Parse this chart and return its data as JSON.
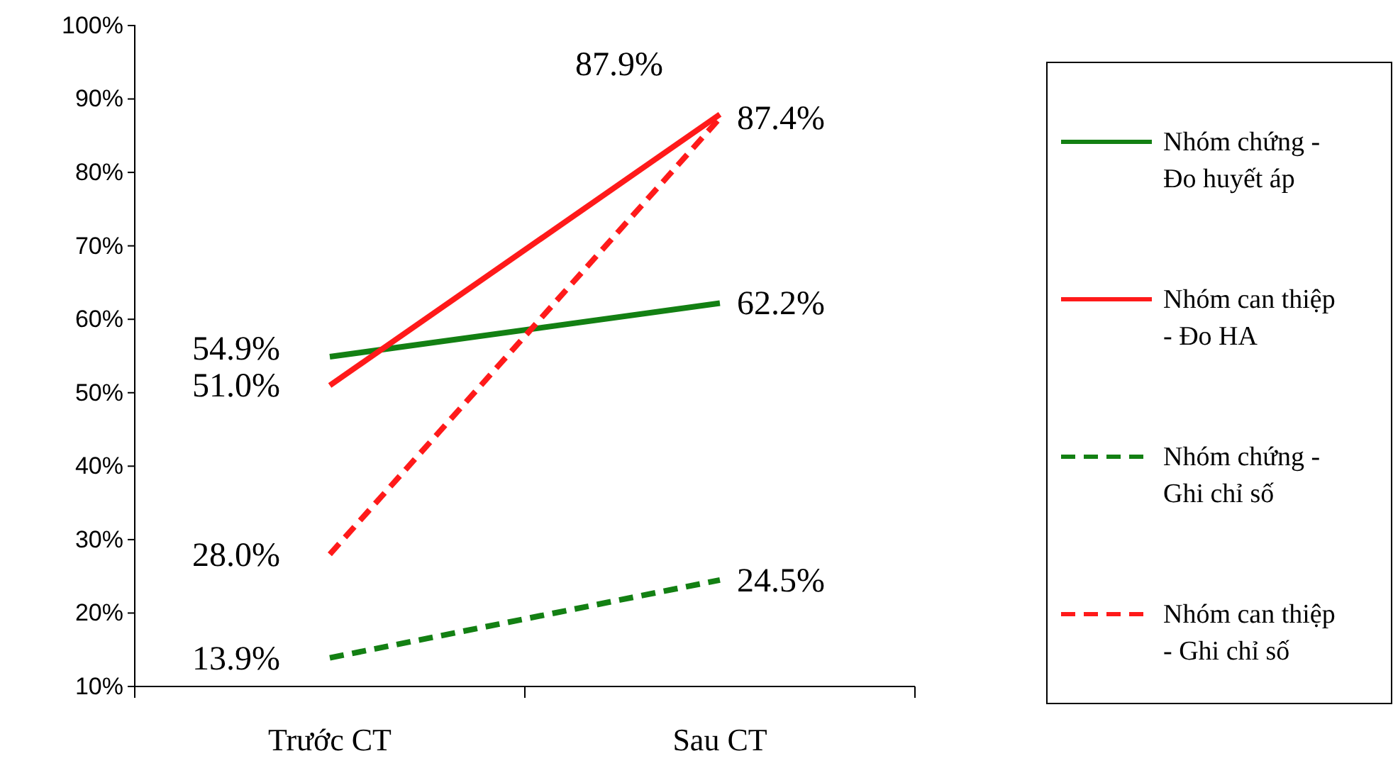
{
  "chart_data": {
    "type": "line",
    "categories": [
      "Trước CT",
      "Sau CT"
    ],
    "ylim": [
      10,
      100
    ],
    "yticks": [
      {
        "value": 10,
        "label": "10%"
      },
      {
        "value": 20,
        "label": "20%"
      },
      {
        "value": 30,
        "label": "30%"
      },
      {
        "value": 40,
        "label": "40%"
      },
      {
        "value": 50,
        "label": "50%"
      },
      {
        "value": 60,
        "label": "60%"
      },
      {
        "value": 70,
        "label": "70%"
      },
      {
        "value": 80,
        "label": "80%"
      },
      {
        "value": 90,
        "label": "90%"
      },
      {
        "value": 100,
        "label": "100%"
      }
    ],
    "grid": false,
    "legend": "right",
    "marker": "none",
    "series": [
      {
        "name": "Nhóm chứng - Đo huyết áp",
        "color": "#138013",
        "line_style": "solid",
        "values": [
          54.9,
          62.2
        ],
        "value_labels": [
          "54.9%",
          "62.2%"
        ]
      },
      {
        "name": "Nhóm can thiệp - Đo HA",
        "color": "#ff1a1a",
        "line_style": "solid",
        "values": [
          51.0,
          87.9
        ],
        "value_labels": [
          "51.0%",
          "87.9%"
        ]
      },
      {
        "name": "Nhóm chứng - Ghi chỉ số",
        "color": "#138013",
        "line_style": "dashed",
        "values": [
          13.9,
          24.5
        ],
        "value_labels": [
          "13.9%",
          "24.5%"
        ]
      },
      {
        "name": "Nhóm can thiệp - Ghi chỉ số",
        "color": "#ff1a1a",
        "line_style": "dashed",
        "values": [
          28.0,
          87.4
        ],
        "value_labels": [
          "28.0%",
          "87.4%"
        ]
      }
    ]
  }
}
